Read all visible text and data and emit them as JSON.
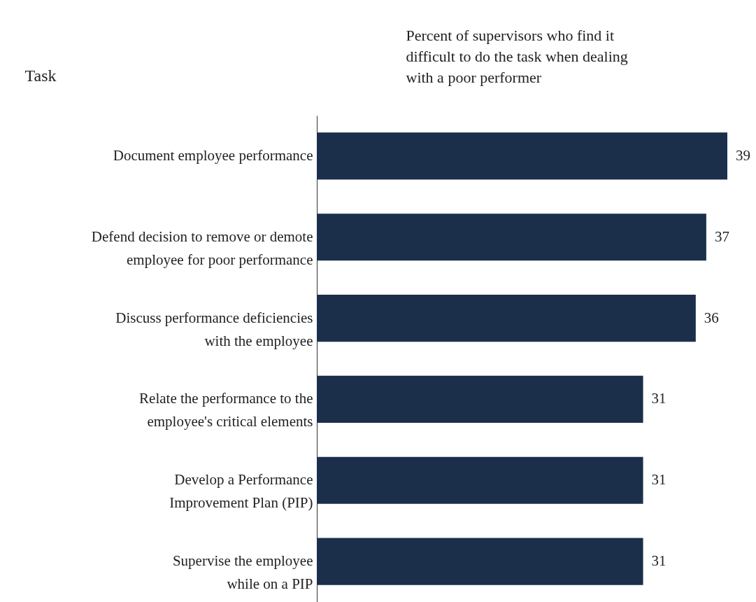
{
  "chart_data": {
    "type": "bar",
    "orientation": "horizontal",
    "xlabel": "Percent of supervisors who find it difficult to do the task when dealing with a poor performer",
    "ylabel": "Task",
    "categories": [
      "Document employee performance",
      "Defend decision to remove or demote employee for poor performance",
      "Discuss performance deficiencies with the employee",
      "Relate the performance to the employee's critical elements",
      "Develop a Performance Improvement Plan (PIP)",
      "Supervise the employee while on a PIP"
    ],
    "values": [
      39,
      37,
      36,
      31,
      31,
      31
    ],
    "color": "#1b2f4b",
    "data_labels": true
  }
}
